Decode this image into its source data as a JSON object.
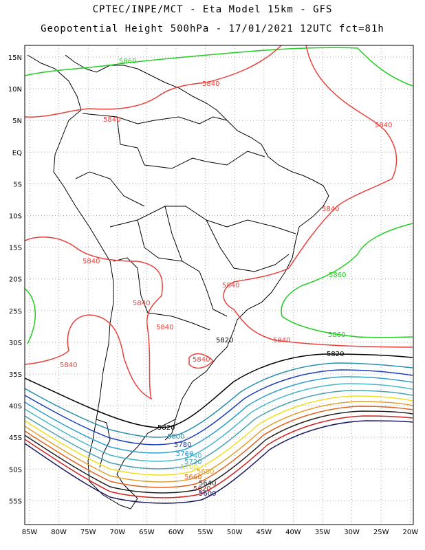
{
  "header": {
    "line1": "CPTEC/INPE/MCT  -   Eta Model 15km  - GFS",
    "line2": "Geopotential Height 500hPa  -  17/01/2021 12UTC fct=81h"
  },
  "axes": {
    "lat": [
      "15N",
      "10N",
      "5N",
      "EQ",
      "5S",
      "10S",
      "15S",
      "20S",
      "25S",
      "30S",
      "35S",
      "40S",
      "45S",
      "50S",
      "55S"
    ],
    "lon": [
      "85W",
      "80W",
      "75W",
      "70W",
      "65W",
      "60W",
      "55W",
      "50W",
      "45W",
      "40W",
      "35W",
      "30W",
      "25W",
      "20W"
    ]
  },
  "colors": {
    "c5860": "#22cc22",
    "c5840": "#e8403a",
    "c5820": "#000000",
    "c5800": "#2a8fb0",
    "c5780": "#1f3fb8",
    "c5760": "#2f9fd0",
    "c5740": "#48b8c8",
    "c5720": "#4aa0b0",
    "c5700": "#f0e020",
    "c5680": "#e0a030",
    "c5660": "#e06020",
    "c5640": "#202020",
    "c5620": "#d02020",
    "c5600": "#1a1a60"
  },
  "labels": {
    "l5860a": "5860",
    "l5860b": "5860",
    "l5860c": "5860",
    "l5840a": "5840",
    "l5840b": "5840",
    "l5840c": "5840",
    "l5840d": "5840",
    "l5840e": "5840",
    "l5840f": "5840",
    "l5840g": "5840",
    "l5840h": "5840",
    "l5840i": "5840",
    "l5840j": "5840",
    "l5840k": "5840",
    "l5820a": "5820",
    "l5820b": "5820",
    "l5820c": "5820",
    "l5800": "5800",
    "l5780": "5780",
    "l5760": "5760",
    "l5740": "5740",
    "l5720": "5720",
    "l5700": "5700",
    "l5680": "5680",
    "l5660": "5660",
    "l5640": "5640",
    "l5620": "5620",
    "l5600": "5600"
  }
}
